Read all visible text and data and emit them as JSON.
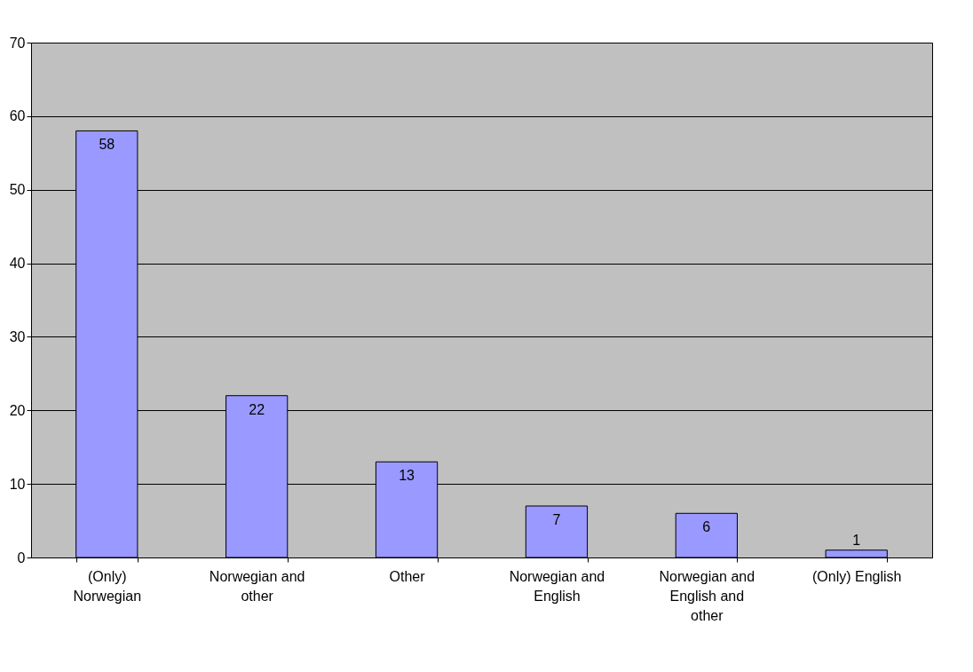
{
  "chart_data": {
    "type": "bar",
    "categories": [
      "(Only) Norwegian",
      "Norwegian and other",
      "Other",
      "Norwegian and English",
      "Norwegian and English and other",
      "(Only) English"
    ],
    "values": [
      58,
      22,
      13,
      7,
      6,
      1
    ],
    "color": "#9999ff",
    "ylim": [
      0,
      70
    ],
    "yticks": [
      0,
      10,
      20,
      30,
      40,
      50,
      60,
      70
    ],
    "grid": "y",
    "data_labels": true
  }
}
